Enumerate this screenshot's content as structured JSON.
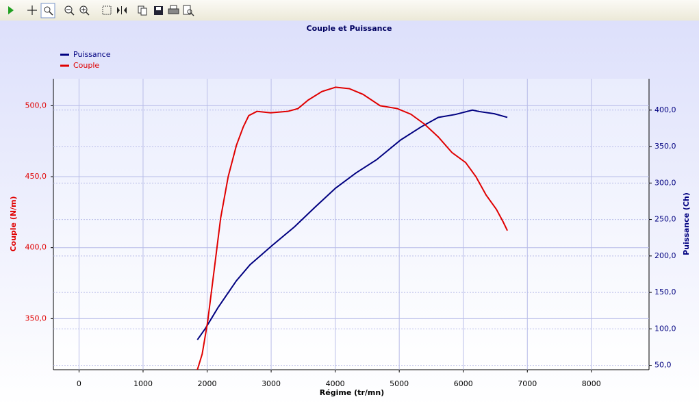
{
  "chart_data": {
    "type": "line",
    "title": "Couple et Puissance",
    "x_label": "Régime (tr/mn)",
    "y_label": "Couple (N/m)",
    "y2_label": "Puissance (Ch)",
    "xlim": [
      -400,
      8900
    ],
    "xticks": [
      0,
      1000,
      2000,
      3000,
      4000,
      5000,
      6000,
      7000,
      8000
    ],
    "ylim": [
      314,
      519
    ],
    "yticks": [
      {
        "value": 350,
        "label": "350,0"
      },
      {
        "value": 400,
        "label": "400,0"
      },
      {
        "value": 450,
        "label": "450,0"
      },
      {
        "value": 500,
        "label": "500,0"
      }
    ],
    "y2lim": [
      44,
      443
    ],
    "y2ticks": [
      {
        "value": 50,
        "label": "50,0"
      },
      {
        "value": 100,
        "label": "100,0"
      },
      {
        "value": 150,
        "label": "150,0"
      },
      {
        "value": 200,
        "label": "200,0"
      },
      {
        "value": 250,
        "label": "250,0"
      },
      {
        "value": 300,
        "label": "300,0"
      },
      {
        "value": 350,
        "label": "350,0"
      },
      {
        "value": 400,
        "label": "400,0"
      }
    ],
    "grid": true,
    "legend": "top-left",
    "series": [
      {
        "name": "Puissance",
        "color": "#000080",
        "axis": "y2",
        "x": [
          1848,
          1976,
          2169,
          2457,
          2671,
          3024,
          3365,
          3686,
          4006,
          4327,
          4647,
          5021,
          5342,
          5609,
          5876,
          6143,
          6250,
          6485,
          6688
        ],
        "values": [
          85,
          101,
          129,
          166,
          188,
          215,
          240,
          267,
          293,
          314,
          332,
          359,
          377,
          390,
          394,
          400,
          398,
          395,
          390
        ]
      },
      {
        "name": "Couple",
        "color": "#e00000",
        "axis": "y",
        "x": [
          1848,
          1923,
          2009,
          2115,
          2212,
          2329,
          2457,
          2564,
          2650,
          2778,
          2991,
          3259,
          3419,
          3579,
          3793,
          4006,
          4220,
          4434,
          4701,
          4968,
          5182,
          5395,
          5609,
          5823,
          6036,
          6197,
          6357,
          6517,
          6624,
          6688
        ],
        "values": [
          314,
          325,
          348,
          386,
          421,
          450,
          472,
          485,
          493,
          496,
          495,
          496,
          498,
          504,
          510,
          513,
          512,
          508,
          500,
          498,
          494,
          487,
          478,
          467,
          460,
          450,
          437,
          427,
          418,
          412
        ]
      }
    ]
  }
}
